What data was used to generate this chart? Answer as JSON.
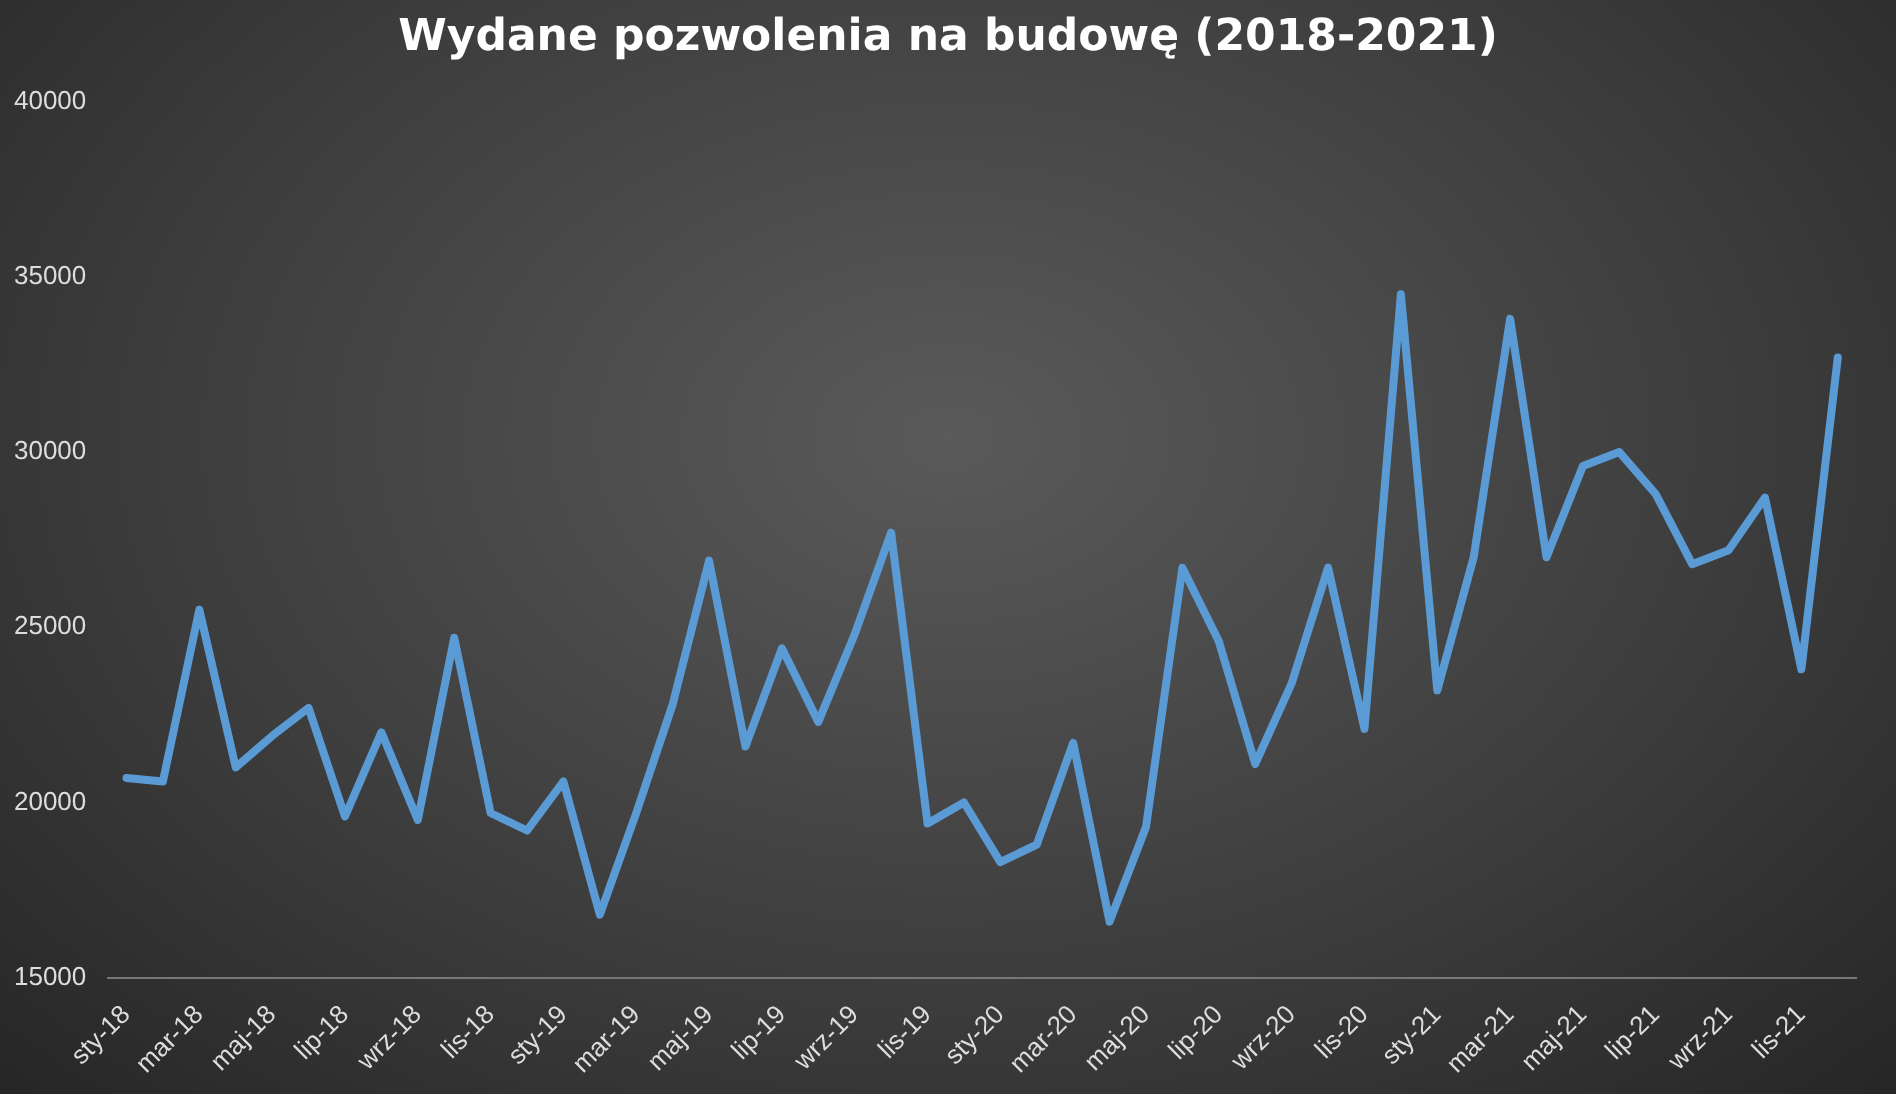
{
  "chart_data": {
    "type": "line",
    "title": "Wydane pozwolenia na budowę (2018-2021)",
    "categories": [
      "sty-18",
      null,
      "mar-18",
      null,
      "maj-18",
      null,
      "lip-18",
      null,
      "wrz-18",
      null,
      "lis-18",
      null,
      "sty-19",
      null,
      "mar-19",
      null,
      "maj-19",
      null,
      "lip-19",
      null,
      "wrz-19",
      null,
      "lis-19",
      null,
      "sty-20",
      null,
      "mar-20",
      null,
      "maj-20",
      null,
      "lip-20",
      null,
      "wrz-20",
      null,
      "lis-20",
      null,
      "sty-21",
      null,
      "mar-21",
      null,
      "maj-21",
      null,
      "lip-21",
      null,
      "wrz-21",
      null,
      "lis-21",
      null
    ],
    "series": [
      {
        "color": "#5b9bd5",
        "values": [
          20700,
          20600,
          25500,
          21000,
          21900,
          22700,
          19600,
          22000,
          19500,
          24700,
          19700,
          19200,
          20600,
          16800,
          19700,
          22800,
          26900,
          21600,
          24400,
          22300,
          24800,
          27700,
          19400,
          20000,
          18300,
          18800,
          21700,
          16600,
          19300,
          26700,
          24600,
          21100,
          23400,
          26700,
          22100,
          34500,
          23200,
          27000,
          33800,
          27000,
          29600,
          30000,
          28800,
          26800,
          27200,
          28700,
          23800,
          32700
        ]
      }
    ],
    "ylim": [
      15000,
      40000
    ],
    "yticks": [
      15000,
      20000,
      25000,
      30000,
      35000,
      40000
    ],
    "grid": false,
    "legend": false,
    "marker": "none",
    "line_style": "solid"
  }
}
